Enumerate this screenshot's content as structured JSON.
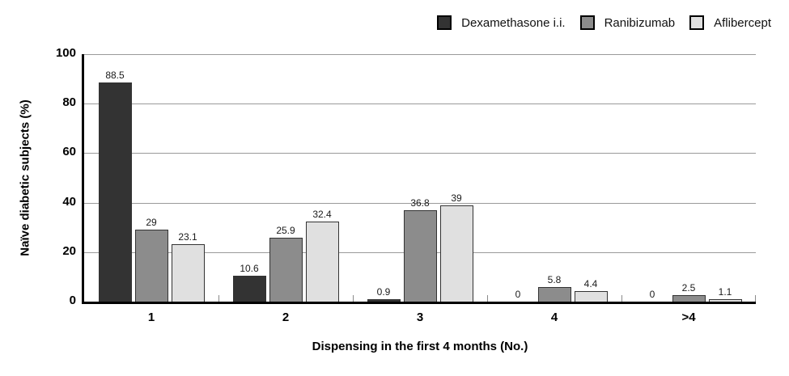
{
  "chart_data": {
    "type": "bar",
    "title": "",
    "categories": [
      "1",
      "2",
      "3",
      "4",
      ">4"
    ],
    "series": [
      {
        "name": "Dexamethasone i.i.",
        "color": "#333333",
        "values": [
          88.5,
          10.6,
          0.9,
          0,
          0
        ]
      },
      {
        "name": "Ranibizumab",
        "color": "#8c8c8c",
        "values": [
          29,
          25.9,
          36.8,
          5.8,
          2.5
        ]
      },
      {
        "name": "Aflibercept",
        "color": "#e0e0e0",
        "values": [
          23.1,
          32.4,
          39,
          4.4,
          1.1
        ]
      }
    ],
    "xlabel": "Dispensing in the first 4 months (No.)",
    "ylabel": "Naïve diabetic subjects (%)",
    "yticks": [
      0,
      20,
      40,
      60,
      80,
      100
    ],
    "ylim": [
      0,
      100
    ],
    "grid": true,
    "legend_position": "top-right",
    "colors": {
      "bar_border": "#333333",
      "gridline": "#9a9a9a",
      "axis": "#000000",
      "background": "#ffffff"
    }
  }
}
